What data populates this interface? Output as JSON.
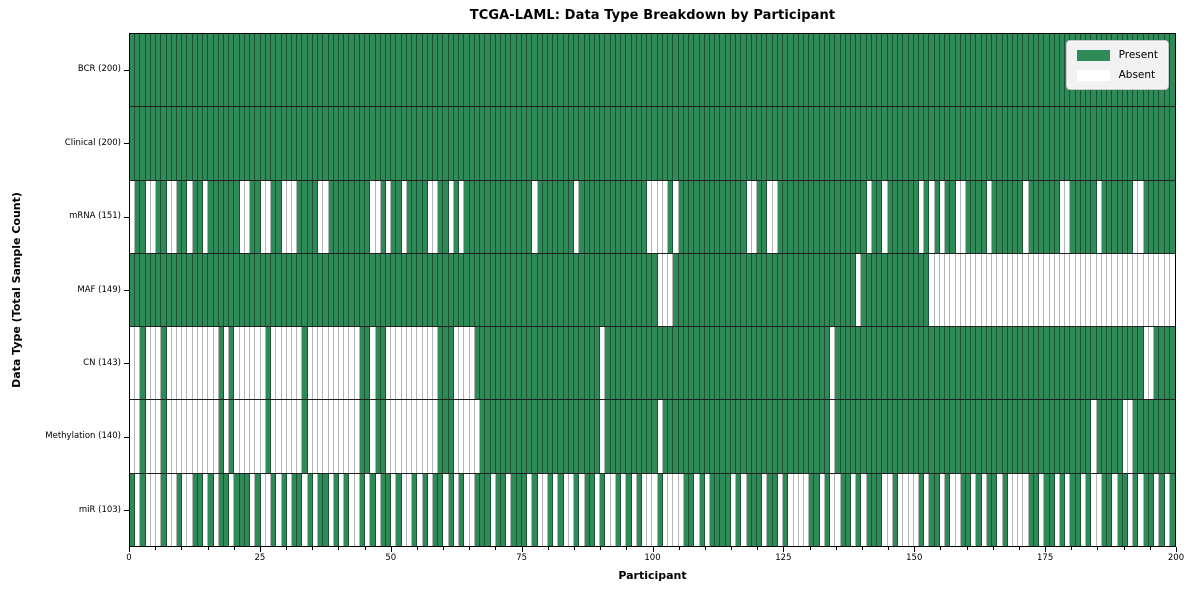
{
  "chart_data": {
    "type": "heatmap",
    "title": "TCGA-LAML: Data Type Breakdown by Participant",
    "xlabel": "Participant",
    "ylabel": "Data Type (Total Sample Count)",
    "x_range": [
      0,
      200
    ],
    "x_major_ticks": [
      0,
      25,
      50,
      75,
      100,
      125,
      150,
      175,
      200
    ],
    "x_minor_tick_step": 5,
    "n_participants": 200,
    "grid": false,
    "legend": {
      "position": "upper-right",
      "entries": [
        {
          "label": "Present",
          "color": "#2e8b57"
        },
        {
          "label": "Absent",
          "color": "#ffffff"
        }
      ]
    },
    "colors": {
      "present": "#2e8b57",
      "absent": "#ffffff",
      "present_edge": "#1b5234",
      "absent_edge": "#b5b5b5",
      "row_separator": "#1f1f1f",
      "plot_border": "#000000",
      "legend_bg": "#f1f2f1"
    },
    "rows": [
      {
        "id": "bcr",
        "label": "BCR (200)",
        "present_count": 200,
        "absent_indices": []
      },
      {
        "id": "clinical",
        "label": "Clinical (200)",
        "present_count": 200,
        "absent_indices": []
      },
      {
        "id": "mrna",
        "label": "mRNA (151)",
        "present_count": 151,
        "absent_indices": [
          0,
          3,
          4,
          7,
          8,
          11,
          14,
          21,
          22,
          25,
          26,
          29,
          30,
          31,
          36,
          37,
          46,
          47,
          49,
          52,
          57,
          58,
          61,
          63,
          77,
          85,
          99,
          100,
          101,
          102,
          104,
          118,
          119,
          122,
          123,
          141,
          144,
          151,
          153,
          155,
          158,
          159,
          164,
          171,
          178,
          179,
          185,
          192,
          193
        ]
      },
      {
        "id": "maf",
        "label": "MAF (149)",
        "present_count": 149,
        "absent_indices": [
          101,
          102,
          103,
          139,
          153,
          154,
          155,
          156,
          157,
          158,
          159,
          160,
          161,
          162,
          163,
          164,
          165,
          166,
          167,
          168,
          169,
          170,
          171,
          172,
          173,
          174,
          175,
          176,
          177,
          178,
          179,
          180,
          181,
          182,
          183,
          184,
          185,
          186,
          187,
          188,
          189,
          190,
          191,
          192,
          193,
          194,
          195,
          196,
          197,
          198,
          199
        ]
      },
      {
        "id": "cn",
        "label": "CN (143)",
        "present_count": 143,
        "absent_indices": [
          0,
          1,
          3,
          4,
          5,
          7,
          8,
          9,
          10,
          11,
          12,
          13,
          14,
          15,
          16,
          18,
          20,
          21,
          22,
          23,
          24,
          25,
          27,
          28,
          29,
          30,
          31,
          32,
          34,
          35,
          36,
          37,
          38,
          39,
          40,
          41,
          42,
          43,
          46,
          49,
          50,
          51,
          52,
          53,
          54,
          55,
          56,
          57,
          58,
          62,
          63,
          64,
          65,
          90,
          134,
          194,
          195
        ]
      },
      {
        "id": "methylation",
        "label": "Methylation (140)",
        "present_count": 140,
        "absent_indices": [
          0,
          1,
          3,
          4,
          5,
          7,
          8,
          9,
          10,
          11,
          12,
          13,
          14,
          15,
          16,
          18,
          20,
          21,
          22,
          23,
          24,
          25,
          27,
          28,
          29,
          30,
          31,
          32,
          34,
          35,
          36,
          37,
          38,
          39,
          40,
          41,
          42,
          43,
          46,
          49,
          50,
          51,
          52,
          53,
          54,
          55,
          56,
          57,
          58,
          62,
          63,
          64,
          65,
          66,
          90,
          101,
          134,
          184,
          190,
          191
        ]
      },
      {
        "id": "mir",
        "label": "miR (103)",
        "present_count": 103,
        "absent_indices": [
          1,
          3,
          4,
          5,
          7,
          8,
          10,
          11,
          14,
          16,
          19,
          23,
          25,
          26,
          28,
          30,
          33,
          35,
          38,
          40,
          42,
          43,
          45,
          47,
          50,
          52,
          53,
          55,
          57,
          60,
          62,
          64,
          65,
          69,
          72,
          76,
          78,
          79,
          81,
          83,
          84,
          86,
          89,
          91,
          92,
          94,
          96,
          98,
          99,
          100,
          102,
          103,
          104,
          105,
          108,
          110,
          115,
          117,
          121,
          124,
          126,
          127,
          128,
          129,
          132,
          134,
          135,
          138,
          140,
          144,
          145,
          147,
          148,
          149,
          150,
          152,
          155,
          157,
          158,
          161,
          163,
          166,
          168,
          169,
          170,
          171,
          174,
          177,
          179,
          182,
          184,
          185,
          188,
          191,
          193,
          196,
          198
        ]
      }
    ]
  }
}
